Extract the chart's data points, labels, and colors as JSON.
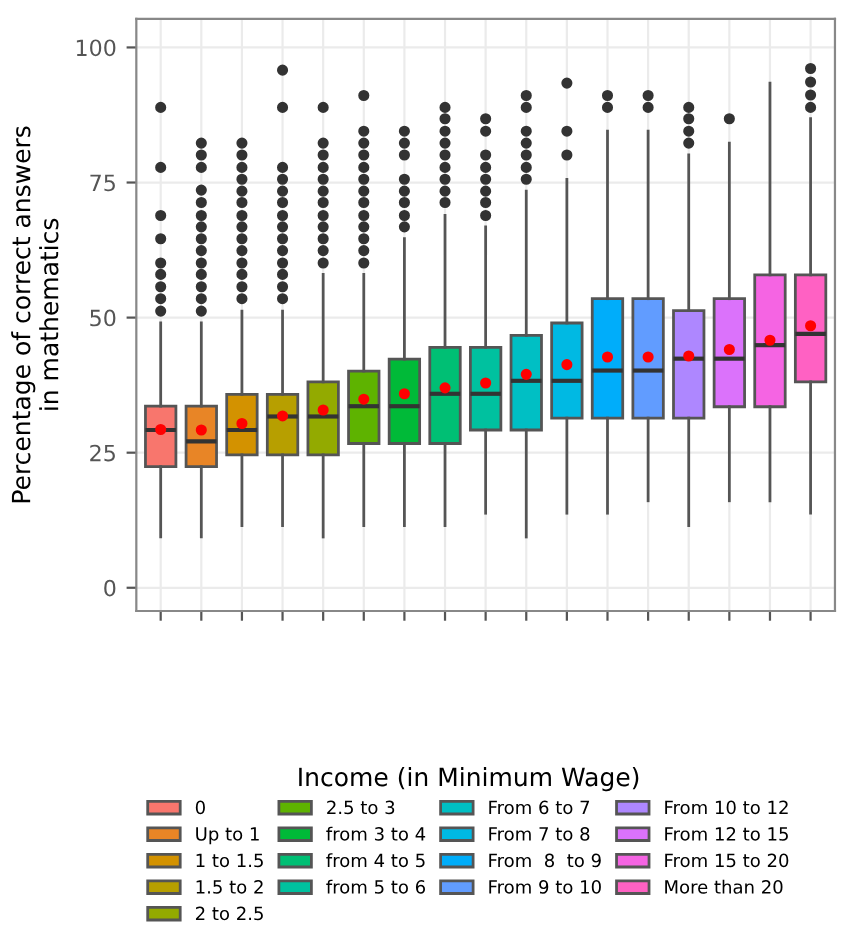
{
  "chart_data": {
    "type": "box",
    "ylabel": "Percentage of correct answers\nin mathematics",
    "legend_title": "Income (in Minimum Wage)",
    "categories": [
      null,
      null,
      null,
      null,
      null,
      null,
      null,
      null,
      null,
      null,
      null,
      null,
      null,
      null,
      null,
      null,
      null
    ],
    "series": [
      {
        "name": "0",
        "color": "#f8766d",
        "boxes": [
          {
            "low": 9.4,
            "q1": 22.4,
            "median": 29.2,
            "q3": 33.6,
            "high": 49,
            "mean": 29.3,
            "outliers": [
              88.9,
              77.8,
              68.9,
              64.6,
              60.1,
              58.0,
              55.7,
              53.5,
              51.2
            ]
          },
          null,
          null,
          null,
          null,
          null,
          null,
          null,
          null,
          null,
          null,
          null,
          null,
          null,
          null,
          null,
          null
        ]
      },
      {
        "name": "Up to 1",
        "color": "#e88526",
        "boxes": [
          null,
          {
            "low": 9.4,
            "q1": 22.4,
            "median": 27.1,
            "q3": 33.6,
            "high": 49,
            "mean": 29.2,
            "outliers": [
              82.3,
              80.1,
              77.8,
              73.6,
              71.3,
              68.9,
              66.8,
              64.6,
              62.4,
              60.1,
              58.0,
              55.7,
              53.5,
              51.2
            ]
          },
          null,
          null,
          null,
          null,
          null,
          null,
          null,
          null,
          null,
          null,
          null,
          null,
          null,
          null,
          null
        ]
      },
      {
        "name": "1 to 1.5",
        "color": "#d39200",
        "boxes": [
          null,
          null,
          {
            "low": 11.5,
            "q1": 24.6,
            "median": 29.2,
            "q3": 35.8,
            "high": 51.2,
            "mean": 30.4,
            "outliers": [
              82.3,
              80.1,
              77.8,
              75.6,
              73.4,
              71.3,
              68.9,
              66.8,
              64.6,
              62.4,
              60.1,
              58.0,
              55.7,
              53.5
            ]
          },
          null,
          null,
          null,
          null,
          null,
          null,
          null,
          null,
          null,
          null,
          null,
          null,
          null,
          null
        ]
      },
      {
        "name": "1.5 to 2",
        "color": "#b79f00",
        "boxes": [
          null,
          null,
          null,
          {
            "low": 11.5,
            "q1": 24.6,
            "median": 31.7,
            "q3": 35.8,
            "high": 51.2,
            "mean": 31.8,
            "outliers": [
              95.8,
              88.9,
              77.8,
              75.6,
              73.4,
              71.3,
              68.9,
              66.8,
              64.6,
              62.4,
              60.1,
              58.0,
              55.7,
              53.5
            ]
          },
          null,
          null,
          null,
          null,
          null,
          null,
          null,
          null,
          null,
          null,
          null,
          null,
          null
        ]
      },
      {
        "name": "2 to 2.5",
        "color": "#93aa00",
        "boxes": [
          null,
          null,
          null,
          null,
          {
            "low": 9.4,
            "q1": 24.6,
            "median": 31.7,
            "q3": 38.1,
            "high": 58.0,
            "mean": 32.9,
            "outliers": [
              88.9,
              82.3,
              80.1,
              77.8,
              75.6,
              73.4,
              71.3,
              68.9,
              66.8,
              64.6,
              62.4,
              60.1
            ]
          },
          null,
          null,
          null,
          null,
          null,
          null,
          null,
          null,
          null,
          null,
          null,
          null
        ]
      },
      {
        "name": "2.5 to 3",
        "color": "#5eb300",
        "boxes": [
          null,
          null,
          null,
          null,
          null,
          {
            "low": 11.5,
            "q1": 26.7,
            "median": 33.6,
            "q3": 40.1,
            "high": 58.0,
            "mean": 34.9,
            "outliers": [
              91.1,
              84.5,
              82.3,
              80.1,
              77.8,
              75.6,
              73.4,
              71.3,
              68.9,
              66.8,
              64.6,
              62.4,
              60.1
            ]
          },
          null,
          null,
          null,
          null,
          null,
          null,
          null,
          null,
          null,
          null,
          null
        ]
      },
      {
        "name": "from 3 to 4",
        "color": "#00ba38",
        "boxes": [
          null,
          null,
          null,
          null,
          null,
          null,
          {
            "low": 11.5,
            "q1": 26.7,
            "median": 33.6,
            "q3": 42.3,
            "high": 64.6,
            "mean": 35.9,
            "outliers": [
              84.5,
              82.3,
              80.1,
              75.6,
              73.4,
              71.3,
              68.9,
              66.8
            ]
          },
          null,
          null,
          null,
          null,
          null,
          null,
          null,
          null,
          null,
          null
        ]
      },
      {
        "name": "from 4 to 5",
        "color": "#00bf74",
        "boxes": [
          null,
          null,
          null,
          null,
          null,
          null,
          null,
          {
            "low": 11.5,
            "q1": 26.7,
            "median": 35.9,
            "q3": 44.5,
            "high": 68.9,
            "mean": 37.0,
            "outliers": [
              88.9,
              86.8,
              84.5,
              82.3,
              80.1,
              77.8,
              75.6,
              73.4,
              71.3
            ]
          },
          null,
          null,
          null,
          null,
          null,
          null,
          null,
          null,
          null
        ]
      },
      {
        "name": "from 5 to 6",
        "color": "#00c19f",
        "boxes": [
          null,
          null,
          null,
          null,
          null,
          null,
          null,
          null,
          {
            "low": 13.8,
            "q1": 29.2,
            "median": 35.9,
            "q3": 44.5,
            "high": 66.8,
            "mean": 37.9,
            "outliers": [
              86.8,
              84.5,
              80.1,
              77.8,
              75.6,
              73.4,
              71.3,
              68.9
            ]
          },
          null,
          null,
          null,
          null,
          null,
          null,
          null,
          null
        ]
      },
      {
        "name": "From 6 to 7",
        "color": "#00bfc4",
        "boxes": [
          null,
          null,
          null,
          null,
          null,
          null,
          null,
          null,
          null,
          {
            "low": 9.4,
            "q1": 29.2,
            "median": 38.3,
            "q3": 46.7,
            "high": 73.4,
            "mean": 39.5,
            "outliers": [
              91.1,
              88.9,
              84.5,
              82.3,
              80.1,
              77.8,
              75.6
            ]
          },
          null,
          null,
          null,
          null,
          null,
          null,
          null
        ]
      },
      {
        "name": "From 7 to 8",
        "color": "#00b9e3",
        "boxes": [
          null,
          null,
          null,
          null,
          null,
          null,
          null,
          null,
          null,
          null,
          {
            "low": 13.8,
            "q1": 31.4,
            "median": 38.3,
            "q3": 49.0,
            "high": 75.6,
            "mean": 41.3,
            "outliers": [
              93.4,
              84.5,
              80.1
            ]
          },
          null,
          null,
          null,
          null,
          null,
          null
        ]
      },
      {
        "name": "From  8  to 9",
        "color": "#00adfa",
        "boxes": [
          null,
          null,
          null,
          null,
          null,
          null,
          null,
          null,
          null,
          null,
          null,
          {
            "low": 13.8,
            "q1": 31.4,
            "median": 40.2,
            "q3": 53.5,
            "high": 84.5,
            "mean": 42.7,
            "outliers": [
              91.1,
              88.9
            ]
          },
          null,
          null,
          null,
          null,
          null
        ]
      },
      {
        "name": "From 9 to 10",
        "color": "#619cff",
        "boxes": [
          null,
          null,
          null,
          null,
          null,
          null,
          null,
          null,
          null,
          null,
          null,
          null,
          {
            "low": 16.1,
            "q1": 31.4,
            "median": 40.2,
            "q3": 53.5,
            "high": 84.5,
            "mean": 42.7,
            "outliers": [
              91.1,
              88.9
            ]
          },
          null,
          null,
          null,
          null
        ]
      },
      {
        "name": "From 10 to 12",
        "color": "#ae87ff",
        "boxes": [
          null,
          null,
          null,
          null,
          null,
          null,
          null,
          null,
          null,
          null,
          null,
          null,
          null,
          {
            "low": 11.5,
            "q1": 31.4,
            "median": 42.4,
            "q3": 51.3,
            "high": 80.1,
            "mean": 42.9,
            "outliers": [
              88.9,
              86.8,
              84.5,
              82.3
            ]
          },
          null,
          null,
          null
        ]
      },
      {
        "name": "From 12 to 15",
        "color": "#db72fb",
        "boxes": [
          null,
          null,
          null,
          null,
          null,
          null,
          null,
          null,
          null,
          null,
          null,
          null,
          null,
          null,
          {
            "low": 16.1,
            "q1": 33.5,
            "median": 42.4,
            "q3": 53.5,
            "high": 82.3,
            "mean": 44.1,
            "outliers": [
              86.8
            ]
          },
          null,
          null
        ]
      },
      {
        "name": "From 15 to 20",
        "color": "#f564e3",
        "boxes": [
          null,
          null,
          null,
          null,
          null,
          null,
          null,
          null,
          null,
          null,
          null,
          null,
          null,
          null,
          null,
          {
            "low": 16.1,
            "q1": 33.5,
            "median": 44.9,
            "q3": 57.9,
            "high": 93.4,
            "mean": 45.8
          },
          null
        ]
      },
      {
        "name": "More than 20",
        "color": "#ff61c3",
        "boxes": [
          null,
          null,
          null,
          null,
          null,
          null,
          null,
          null,
          null,
          null,
          null,
          null,
          null,
          null,
          null,
          null,
          {
            "low": 13.8,
            "q1": 38.1,
            "median": 47.0,
            "q3": 57.9,
            "high": 86.8,
            "mean": 48.5,
            "outliers": [
              96.1,
              93.6,
              91.2,
              88.9
            ]
          }
        ]
      }
    ],
    "ylim": [
      -4.3,
      105.3
    ],
    "yticks": [
      0,
      25,
      50,
      75,
      100
    ],
    "grid": true,
    "legend": "bottom",
    "tick_labels": "y"
  }
}
